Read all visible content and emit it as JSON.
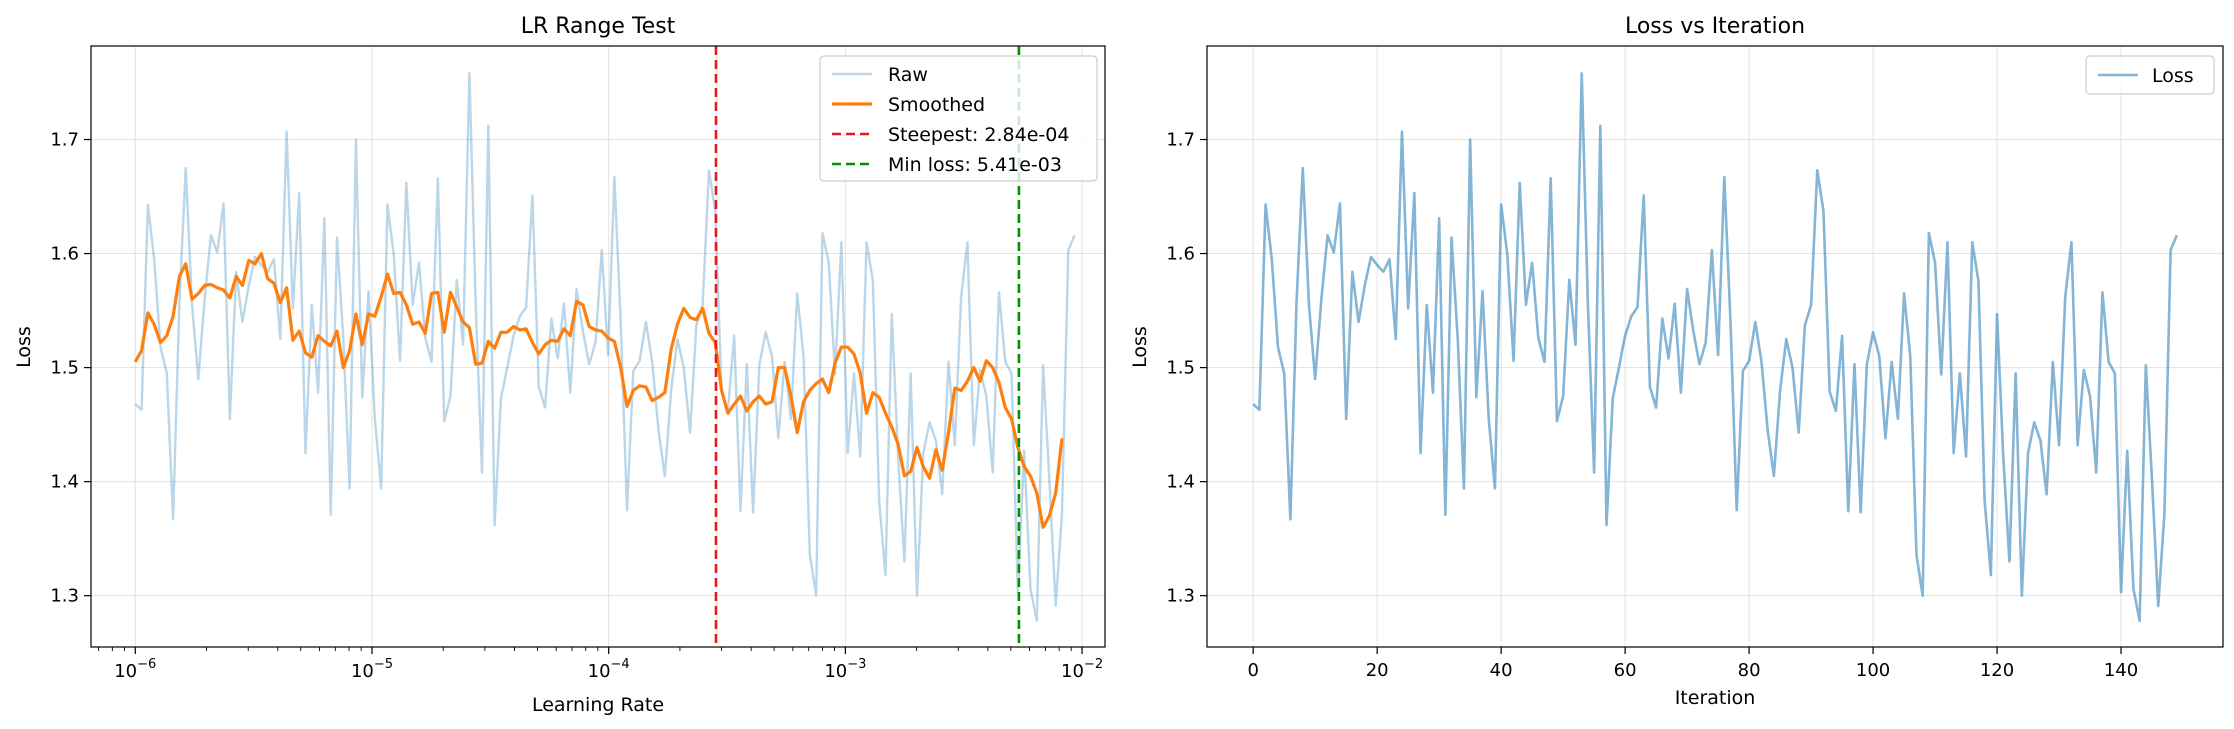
{
  "chart_data": [
    {
      "type": "line",
      "title": "LR Range Test",
      "xlabel": "Learning Rate",
      "ylabel": "Loss",
      "xscale": "log",
      "xlim": [
        6.5e-07,
        0.0125
      ],
      "ylim": [
        1.255,
        1.782
      ],
      "xticks": [
        {
          "value": 1e-06,
          "base": "10",
          "exp": "−6"
        },
        {
          "value": 1e-05,
          "base": "10",
          "exp": "−5"
        },
        {
          "value": 0.0001,
          "base": "10",
          "exp": "−4"
        },
        {
          "value": 0.001,
          "base": "10",
          "exp": "−3"
        },
        {
          "value": 0.01,
          "base": "10",
          "exp": "−2"
        }
      ],
      "yticks": [
        "1.3",
        "1.4",
        "1.5",
        "1.6",
        "1.7"
      ],
      "grid": true,
      "legend_position": "top-right",
      "lr_start": 1e-06,
      "lr_end": 0.0093,
      "series": [
        {
          "name": "Raw",
          "color": "#1f77b4",
          "opacity": 0.3,
          "values": [
            1.468,
            1.463,
            1.643,
            1.595,
            1.518,
            1.495,
            1.367,
            1.558,
            1.675,
            1.555,
            1.49,
            1.56,
            1.616,
            1.601,
            1.644,
            1.455,
            1.584,
            1.54,
            1.572,
            1.597,
            1.59,
            1.584,
            1.595,
            1.525,
            1.707,
            1.552,
            1.653,
            1.425,
            1.555,
            1.478,
            1.631,
            1.371,
            1.614,
            1.525,
            1.394,
            1.7,
            1.474,
            1.567,
            1.455,
            1.394,
            1.643,
            1.599,
            1.506,
            1.662,
            1.555,
            1.592,
            1.526,
            1.505,
            1.666,
            1.453,
            1.475,
            1.577,
            1.52,
            1.758,
            1.555,
            1.408,
            1.712,
            1.362,
            1.473,
            1.5,
            1.528,
            1.545,
            1.553,
            1.651,
            1.483,
            1.465,
            1.543,
            1.508,
            1.556,
            1.478,
            1.569,
            1.532,
            1.503,
            1.522,
            1.603,
            1.511,
            1.667,
            1.54,
            1.375,
            1.497,
            1.506,
            1.54,
            1.505,
            1.445,
            1.405,
            1.48,
            1.525,
            1.5,
            1.443,
            1.537,
            1.555,
            1.673,
            1.637,
            1.479,
            1.462,
            1.528,
            1.374,
            1.503,
            1.373,
            1.503,
            1.531,
            1.51,
            1.438,
            1.505,
            1.455,
            1.565,
            1.51,
            1.336,
            1.3,
            1.618,
            1.592,
            1.494,
            1.61,
            1.425,
            1.495,
            1.422,
            1.61,
            1.576,
            1.383,
            1.318,
            1.547,
            1.422,
            1.33,
            1.495,
            1.3,
            1.425,
            1.452,
            1.436,
            1.389,
            1.505,
            1.432,
            1.562,
            1.61,
            1.432,
            1.498,
            1.475,
            1.408,
            1.566,
            1.505,
            1.495,
            1.303,
            1.427,
            1.306,
            1.278,
            1.502,
            1.401,
            1.291,
            1.372,
            1.603,
            1.616
          ]
        },
        {
          "name": "Smoothed",
          "color": "#ff7f0e",
          "opacity": 1,
          "values": [
            1.505,
            1.515,
            1.548,
            1.538,
            1.522,
            1.528,
            1.545,
            1.58,
            1.591,
            1.56,
            1.565,
            1.572,
            1.573,
            1.57,
            1.568,
            1.561,
            1.58,
            1.572,
            1.594,
            1.591,
            1.6,
            1.578,
            1.574,
            1.557,
            1.57,
            1.524,
            1.532,
            1.513,
            1.509,
            1.528,
            1.523,
            1.519,
            1.532,
            1.5,
            1.515,
            1.547,
            1.52,
            1.547,
            1.545,
            1.562,
            1.582,
            1.565,
            1.566,
            1.555,
            1.538,
            1.54,
            1.53,
            1.565,
            1.566,
            1.531,
            1.566,
            1.553,
            1.54,
            1.535,
            1.503,
            1.504,
            1.523,
            1.517,
            1.531,
            1.531,
            1.536,
            1.533,
            1.534,
            1.522,
            1.512,
            1.52,
            1.524,
            1.523,
            1.534,
            1.528,
            1.558,
            1.555,
            1.536,
            1.533,
            1.532,
            1.526,
            1.523,
            1.5,
            1.466,
            1.48,
            1.484,
            1.483,
            1.471,
            1.474,
            1.478,
            1.516,
            1.538,
            1.552,
            1.544,
            1.542,
            1.552,
            1.53,
            1.522,
            1.48,
            1.46,
            1.468,
            1.475,
            1.462,
            1.47,
            1.475,
            1.468,
            1.47,
            1.5,
            1.5,
            1.475,
            1.443,
            1.47,
            1.48,
            1.486,
            1.49,
            1.478,
            1.504,
            1.518,
            1.518,
            1.512,
            1.495,
            1.46,
            1.478,
            1.474,
            1.46,
            1.448,
            1.433,
            1.405,
            1.409,
            1.43,
            1.413,
            1.403,
            1.428,
            1.41,
            1.443,
            1.482,
            1.48,
            1.488,
            1.5,
            1.488,
            1.506,
            1.5,
            1.487,
            1.465,
            1.455,
            1.43,
            1.413,
            1.405,
            1.39,
            1.36,
            1.37,
            1.39,
            1.438
          ]
        }
      ],
      "vlines": [
        {
          "label": "Steepest: 2.84e-04",
          "value": 0.000284,
          "color": "#e41a1c"
        },
        {
          "label": "Min loss: 5.41e-03",
          "value": 0.00541,
          "color": "#009000"
        }
      ]
    },
    {
      "type": "line",
      "title": "Loss vs Iteration",
      "xlabel": "Iteration",
      "ylabel": "Loss",
      "xlim": [
        -7.45,
        156.45
      ],
      "ylim": [
        1.255,
        1.782
      ],
      "xticks": [
        "0",
        "20",
        "40",
        "60",
        "80",
        "100",
        "120",
        "140"
      ],
      "yticks": [
        "1.3",
        "1.4",
        "1.5",
        "1.6",
        "1.7"
      ],
      "grid": true,
      "legend_position": "top-right",
      "series": [
        {
          "name": "Loss",
          "color": "#1f77b4",
          "opacity": 0.55,
          "source": "same values as Raw series of LR Range Test"
        }
      ]
    }
  ]
}
